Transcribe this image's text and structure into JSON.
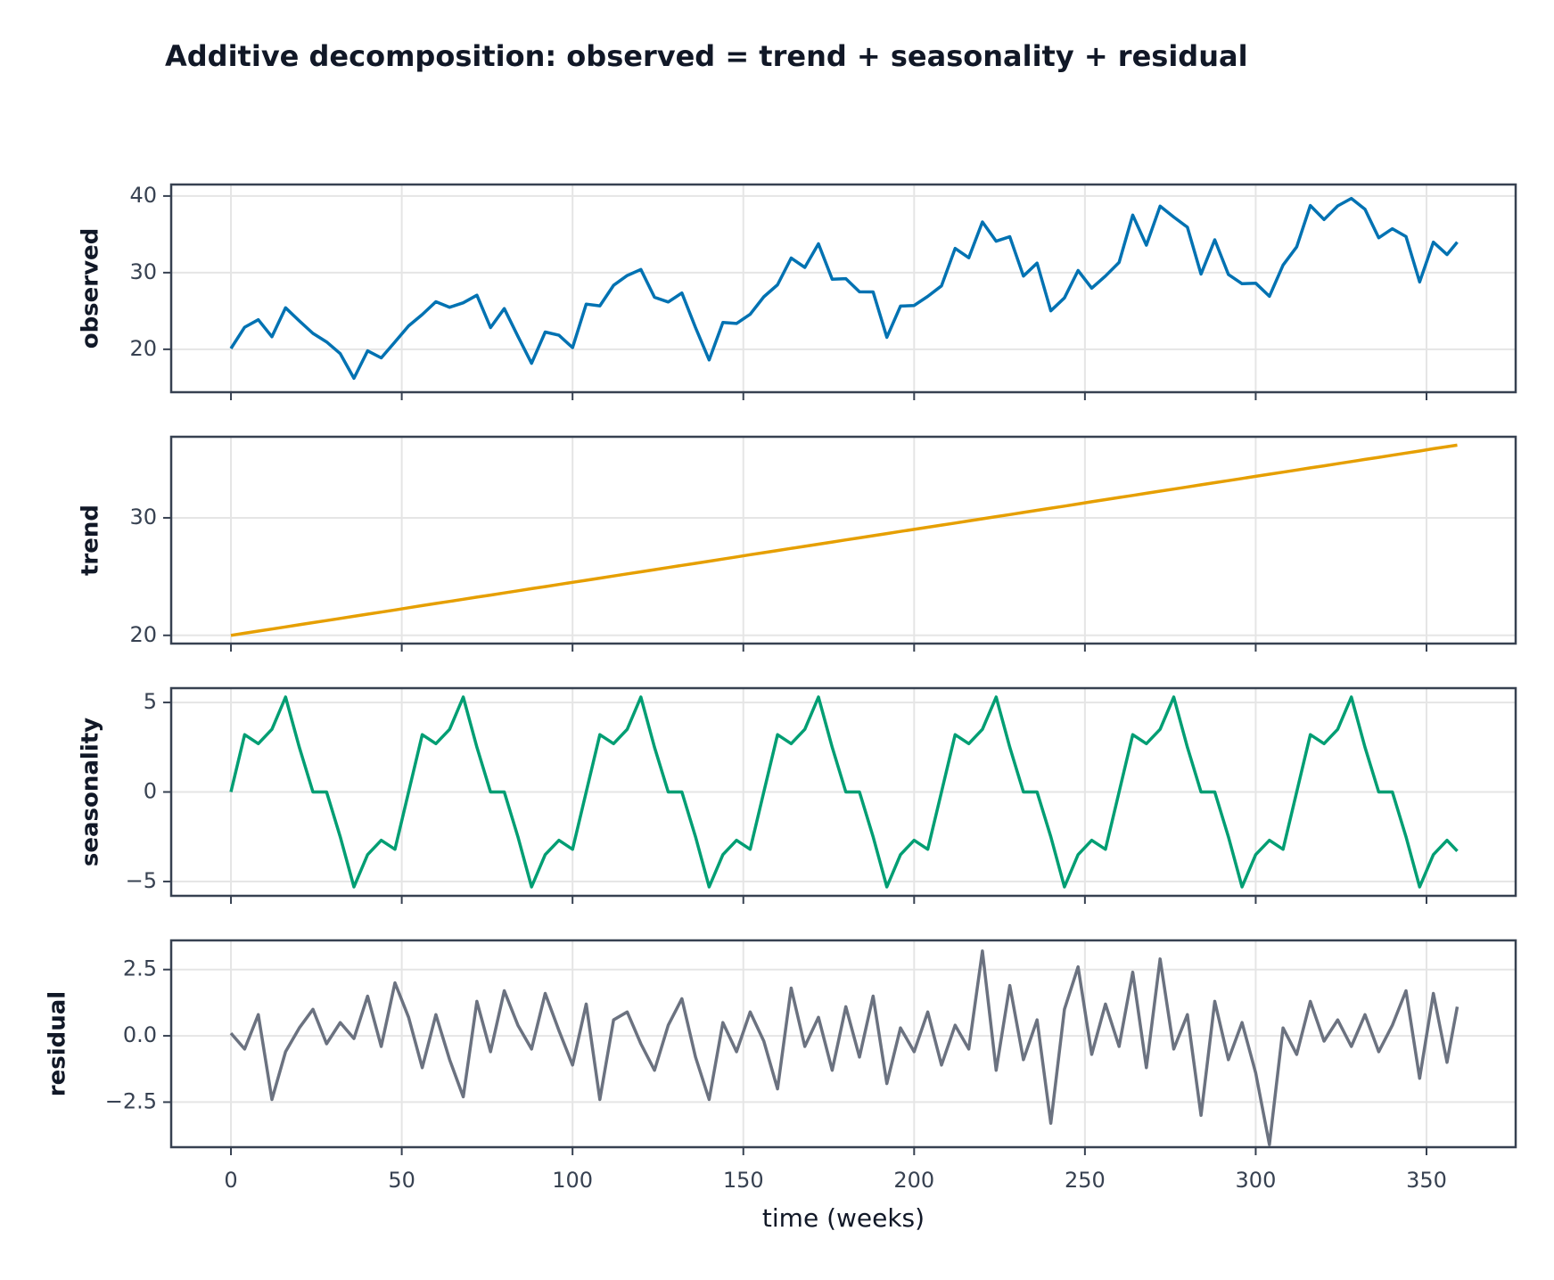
{
  "chart_data": {
    "type": "line",
    "title": "Additive decomposition:  observed = trend + seasonality + residual",
    "xlabel": "time (weeks)",
    "xlim": [
      -17.5,
      376.1
    ],
    "xticks": [
      0,
      50,
      100,
      150,
      200,
      250,
      300,
      350
    ],
    "grid": true,
    "x": [
      0,
      4,
      8,
      12,
      16,
      20,
      24,
      28,
      32,
      36,
      40,
      44,
      48,
      52,
      56,
      60,
      64,
      68,
      72,
      76,
      80,
      84,
      88,
      92,
      96,
      100,
      104,
      108,
      112,
      116,
      120,
      124,
      128,
      132,
      136,
      140,
      144,
      148,
      152,
      156,
      160,
      164,
      168,
      172,
      176,
      180,
      184,
      188,
      192,
      196,
      200,
      204,
      208,
      212,
      216,
      220,
      224,
      228,
      232,
      236,
      240,
      244,
      248,
      252,
      256,
      260,
      264,
      268,
      272,
      276,
      280,
      284,
      288,
      292,
      296,
      300,
      304,
      308,
      312,
      316,
      320,
      324,
      328,
      332,
      336,
      340,
      344,
      348,
      352,
      356,
      359
    ],
    "series": [
      {
        "name": "observed",
        "color": "#0072b2",
        "ylim": [
          14.4,
          41.5
        ],
        "yticks": [
          20,
          30,
          40
        ],
        "values": [
          20.1,
          22.88,
          23.86,
          21.64,
          25.42,
          23.7,
          22.08,
          20.96,
          19.44,
          16.22,
          19.8,
          18.88,
          20.96,
          23.05,
          24.53,
          26.21,
          25.49,
          26.07,
          27.05,
          22.83,
          25.31,
          21.69,
          18.17,
          22.25,
          21.83,
          20.21,
          25.89,
          25.67,
          28.35,
          29.63,
          30.41,
          26.79,
          26.17,
          27.35,
          22.83,
          18.61,
          23.49,
          23.37,
          24.56,
          26.84,
          28.42,
          31.9,
          30.68,
          33.76,
          29.14,
          29.22,
          27.5,
          27.48,
          21.56,
          25.64,
          25.72,
          26.9,
          28.28,
          33.16,
          31.94,
          36.62,
          34.1,
          34.68,
          29.56,
          31.24,
          25.02,
          26.7,
          30.28,
          27.97,
          29.55,
          31.33,
          37.51,
          33.59,
          38.67,
          37.25,
          35.93,
          29.81,
          34.29,
          29.77,
          28.55,
          28.63,
          26.91,
          30.99,
          33.37,
          38.75,
          36.93,
          38.71,
          39.69,
          38.27,
          34.55,
          35.73,
          34.71,
          28.79,
          33.98,
          32.36,
          33.99
        ]
      },
      {
        "name": "trend",
        "color": "#e69f00",
        "ylim": [
          19.3,
          36.9
        ],
        "yticks": [
          20,
          30
        ],
        "values": [
          20.0,
          20.18,
          20.36,
          20.54,
          20.72,
          20.9,
          21.08,
          21.26,
          21.44,
          21.62,
          21.8,
          21.98,
          22.16,
          22.35,
          22.53,
          22.71,
          22.89,
          23.07,
          23.25,
          23.43,
          23.61,
          23.79,
          23.97,
          24.15,
          24.33,
          24.51,
          24.69,
          24.87,
          25.05,
          25.23,
          25.41,
          25.59,
          25.77,
          25.95,
          26.13,
          26.31,
          26.49,
          26.67,
          26.86,
          27.04,
          27.22,
          27.4,
          27.58,
          27.76,
          27.94,
          28.12,
          28.3,
          28.48,
          28.66,
          28.84,
          29.02,
          29.2,
          29.38,
          29.56,
          29.74,
          29.92,
          30.1,
          30.28,
          30.46,
          30.64,
          30.82,
          31.0,
          31.18,
          31.37,
          31.55,
          31.73,
          31.91,
          32.09,
          32.27,
          32.45,
          32.63,
          32.81,
          32.99,
          33.17,
          33.35,
          33.53,
          33.71,
          33.89,
          34.07,
          34.25,
          34.43,
          34.61,
          34.79,
          34.97,
          35.15,
          35.33,
          35.51,
          35.69,
          35.88,
          36.06,
          36.19
        ]
      },
      {
        "name": "seasonality",
        "color": "#009e73",
        "ylim": [
          -5.8,
          5.8
        ],
        "yticks": [
          {
            "value": -5,
            "label": "−5"
          },
          0,
          5
        ],
        "values": [
          0,
          3.2,
          2.7,
          3.5,
          5.3,
          2.5,
          0,
          0,
          -2.5,
          -5.3,
          -3.5,
          -2.7,
          -3.2,
          0,
          3.2,
          2.7,
          3.5,
          5.3,
          2.5,
          0,
          0,
          -2.5,
          -5.3,
          -3.5,
          -2.7,
          -3.2,
          0,
          3.2,
          2.7,
          3.5,
          5.3,
          2.5,
          0,
          0,
          -2.5,
          -5.3,
          -3.5,
          -2.7,
          -3.2,
          0,
          3.2,
          2.7,
          3.5,
          5.3,
          2.5,
          0,
          0,
          -2.5,
          -5.3,
          -3.5,
          -2.7,
          -3.2,
          0,
          3.2,
          2.7,
          3.5,
          5.3,
          2.5,
          0,
          0,
          -2.5,
          -5.3,
          -3.5,
          -2.7,
          -3.2,
          0,
          3.2,
          2.7,
          3.5,
          5.3,
          2.5,
          0,
          0,
          -2.5,
          -5.3,
          -3.5,
          -2.7,
          -3.2,
          0,
          3.2,
          2.7,
          3.5,
          5.3,
          2.5,
          0,
          0,
          -2.5,
          -5.3,
          -3.5,
          -2.7,
          -3.3
        ]
      },
      {
        "name": "residual",
        "color": "#6b7280",
        "ylim": [
          -4.2,
          3.6
        ],
        "yticks": [
          {
            "value": -2.5,
            "label": "−2.5"
          },
          {
            "value": 0,
            "label": "0.0"
          },
          2.5
        ],
        "values": [
          0.1,
          -0.5,
          0.8,
          -2.4,
          -0.6,
          0.3,
          1.0,
          -0.3,
          0.5,
          -0.1,
          1.5,
          -0.4,
          2.0,
          0.7,
          -1.2,
          0.8,
          -0.9,
          -2.3,
          1.3,
          -0.6,
          1.7,
          0.4,
          -0.5,
          1.6,
          0.2,
          -1.1,
          1.2,
          -2.4,
          0.6,
          0.9,
          -0.3,
          -1.3,
          0.4,
          1.4,
          -0.8,
          -2.4,
          0.5,
          -0.6,
          0.9,
          -0.2,
          -2.0,
          1.8,
          -0.4,
          0.7,
          -1.3,
          1.1,
          -0.8,
          1.5,
          -1.8,
          0.3,
          -0.6,
          0.9,
          -1.1,
          0.4,
          -0.5,
          3.2,
          -1.3,
          1.9,
          -0.9,
          0.6,
          -3.3,
          1.0,
          2.6,
          -0.7,
          1.2,
          -0.4,
          2.4,
          -1.2,
          2.9,
          -0.5,
          0.8,
          -3.0,
          1.3,
          -0.9,
          0.5,
          -1.4,
          -4.1,
          0.3,
          -0.7,
          1.3,
          -0.2,
          0.6,
          -0.4,
          0.8,
          -0.6,
          0.4,
          1.7,
          -1.6,
          1.6,
          -1.0,
          1.1
        ]
      }
    ]
  }
}
